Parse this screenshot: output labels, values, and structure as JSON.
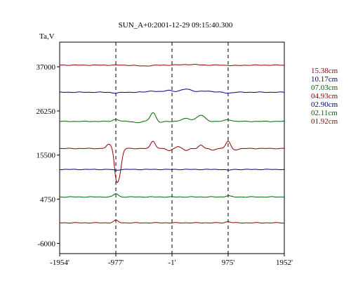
{
  "chart_data": {
    "type": "line",
    "title": "SUN_A+0:2001-12-29 09:15:40.300",
    "ylabel": "Ta,V",
    "xlabel": "",
    "x_ticks": [
      "-1954'",
      "-977'",
      "-1'",
      "975'",
      "1952'"
    ],
    "x_tick_values": [
      -1954,
      -977,
      -1,
      975,
      1952
    ],
    "xlim": [
      -1954,
      1952
    ],
    "y_ticks": [
      "37000",
      "26250",
      "15500",
      "4750",
      "-6000"
    ],
    "y_tick_values": [
      37000,
      26250,
      15500,
      4750,
      -6000
    ],
    "ylim": [
      -8500,
      43000
    ],
    "vertical_dashed_lines_x": [
      -977,
      -1,
      975
    ],
    "grid": false,
    "legend_position": "right",
    "series": [
      {
        "name": "15.38cm",
        "color": "#8b0000",
        "baseline": 37400,
        "features": [
          [
            -500,
            120,
            -200
          ],
          [
            300,
            150,
            150
          ],
          [
            1100,
            100,
            -100
          ]
        ]
      },
      {
        "name": "10.17cm",
        "color": "#00008b",
        "baseline": 30800,
        "features": [
          [
            -977,
            60,
            -200
          ],
          [
            -350,
            80,
            300
          ],
          [
            -60,
            70,
            500
          ],
          [
            250,
            90,
            800
          ],
          [
            600,
            100,
            300
          ],
          [
            975,
            60,
            -200
          ]
        ]
      },
      {
        "name": "07.03cm",
        "color": "#006400",
        "baseline": 23700,
        "features": [
          [
            -977,
            50,
            500
          ],
          [
            -600,
            60,
            -300
          ],
          [
            -330,
            50,
            2200
          ],
          [
            -220,
            60,
            -300
          ],
          [
            250,
            80,
            700
          ],
          [
            500,
            70,
            1500
          ],
          [
            975,
            60,
            400
          ]
        ]
      },
      {
        "name": "04.93cm",
        "color": "#8b0000",
        "baseline": 17100,
        "features": [
          [
            -1100,
            40,
            1000
          ],
          [
            -977,
            30,
            -5000
          ],
          [
            -920,
            40,
            -6500
          ],
          [
            -330,
            40,
            1800
          ],
          [
            -50,
            40,
            -600
          ],
          [
            100,
            40,
            500
          ],
          [
            250,
            40,
            -500
          ],
          [
            500,
            40,
            800
          ],
          [
            700,
            40,
            -400
          ],
          [
            975,
            40,
            1800
          ],
          [
            1100,
            60,
            -300
          ]
        ]
      },
      {
        "name": "02.90cm",
        "color": "#00008b",
        "baseline": 12000,
        "features": [
          [
            -977,
            40,
            -200
          ],
          [
            975,
            40,
            -200
          ]
        ]
      },
      {
        "name": "02.11cm",
        "color": "#006400",
        "baseline": 5300,
        "features": [
          [
            -977,
            40,
            800
          ],
          [
            975,
            40,
            300
          ]
        ]
      },
      {
        "name": "01.92cm",
        "color": "#8b0000",
        "baseline": -1000,
        "features": [
          [
            -977,
            40,
            600
          ],
          [
            975,
            40,
            300
          ]
        ]
      }
    ]
  }
}
